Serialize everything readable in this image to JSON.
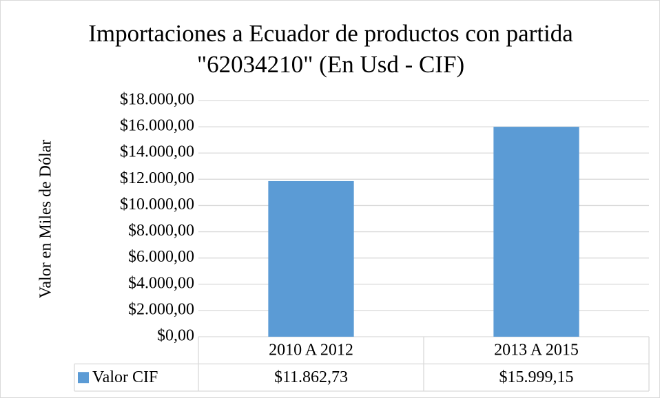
{
  "chart_data": {
    "type": "bar",
    "title": [
      "Importaciones a Ecuador de productos con partida",
      "\"62034210\"  (En Usd - CIF)"
    ],
    "y_label": "Valor en Miles de Dólar",
    "categories": [
      "2010 A 2012",
      "2013 A 2015"
    ],
    "series": [
      {
        "name": "Valor CIF",
        "color": "#5b9bd5",
        "values": [
          11862.73,
          15999.15
        ],
        "value_labels": [
          "$11.862,73",
          "$15.999,15"
        ]
      }
    ],
    "ylim": [
      0,
      18000
    ],
    "yticks": [
      {
        "value": 0,
        "label": "$0,00"
      },
      {
        "value": 2000,
        "label": "$2.000,00"
      },
      {
        "value": 4000,
        "label": "$4.000,00"
      },
      {
        "value": 6000,
        "label": "$6.000,00"
      },
      {
        "value": 8000,
        "label": "$8.000,00"
      },
      {
        "value": 10000,
        "label": "$10.000,00"
      },
      {
        "value": 12000,
        "label": "$12.000,00"
      },
      {
        "value": 14000,
        "label": "$14.000,00"
      },
      {
        "value": 16000,
        "label": "$16.000,00"
      },
      {
        "value": 18000,
        "label": "$18.000,00"
      }
    ],
    "grid": true,
    "data_table": true
  }
}
